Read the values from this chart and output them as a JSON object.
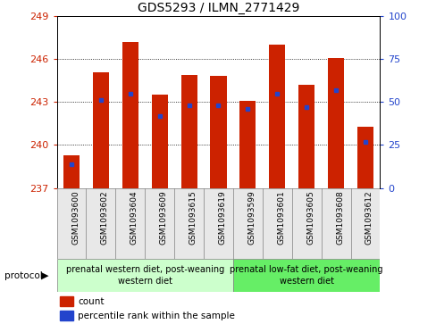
{
  "title": "GDS5293 / ILMN_2771429",
  "samples": [
    "GSM1093600",
    "GSM1093602",
    "GSM1093604",
    "GSM1093609",
    "GSM1093615",
    "GSM1093619",
    "GSM1093599",
    "GSM1093601",
    "GSM1093605",
    "GSM1093608",
    "GSM1093612"
  ],
  "bar_tops": [
    239.3,
    245.1,
    247.2,
    243.5,
    244.9,
    244.8,
    243.1,
    247.0,
    244.2,
    246.1,
    241.3
  ],
  "bar_base": 237,
  "percentile_ranks": [
    14,
    51,
    55,
    42,
    48,
    48,
    46,
    55,
    47,
    57,
    27
  ],
  "ylim_left": [
    237,
    249
  ],
  "ylim_right": [
    0,
    100
  ],
  "yticks_left": [
    237,
    240,
    243,
    246,
    249
  ],
  "yticks_right": [
    0,
    25,
    50,
    75,
    100
  ],
  "bar_color": "#cc2200",
  "dot_color": "#2244cc",
  "bar_width": 0.55,
  "group1_label": "prenatal western diet, post-weaning\nwestern diet",
  "group2_label": "prenatal low-fat diet, post-weaning\nwestern diet",
  "group1_count": 6,
  "group2_count": 5,
  "protocol_label": "protocol",
  "legend_count": "count",
  "legend_percentile": "percentile rank within the sample",
  "group1_color": "#ccffcc",
  "group2_color": "#66ee66",
  "left_tick_color": "#cc2200",
  "right_tick_color": "#2244cc",
  "title_fontsize": 10,
  "tick_fontsize": 8,
  "label_fontsize": 6.5,
  "group_fontsize": 7
}
